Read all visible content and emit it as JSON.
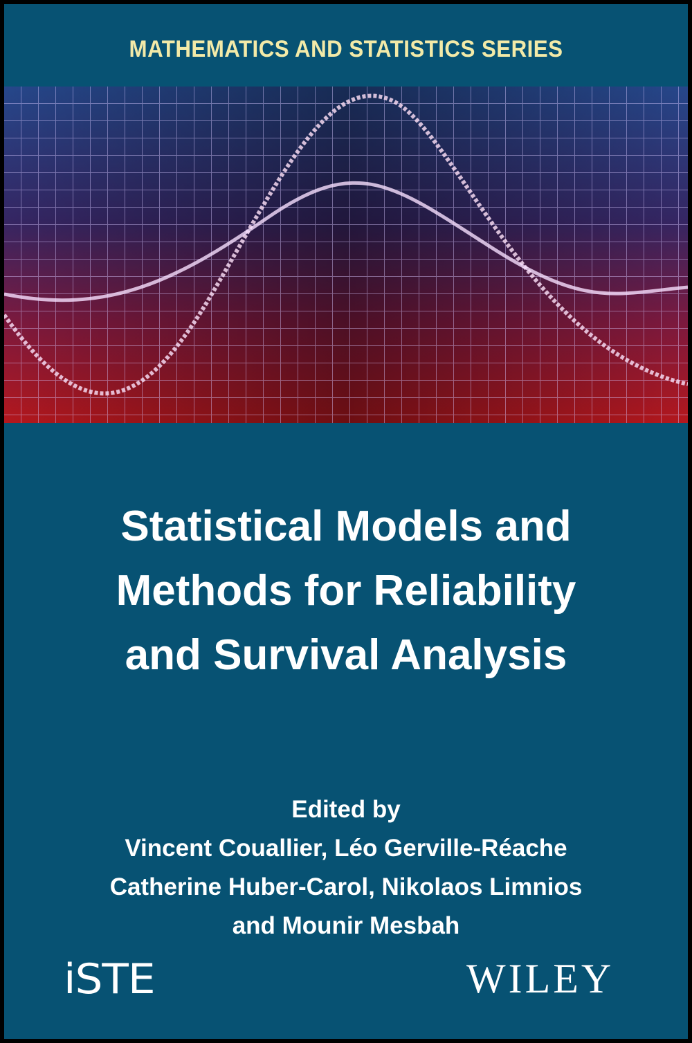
{
  "series": "MATHEMATICS AND STATISTICS SERIES",
  "title_lines": [
    "Statistical Models and",
    "Methods for Reliability",
    "and Survival Analysis"
  ],
  "editors": {
    "label": "Edited by",
    "lines": [
      "Vincent Couallier, Léo Gerville-Réache",
      "Catherine Huber-Carol, Nikolaos Limnios",
      "and Mounir Mesbah"
    ]
  },
  "publishers": {
    "iste": "iSTE",
    "wiley": "WILEY"
  },
  "colors": {
    "background": "#075273",
    "series_text": "#f3eaa8",
    "text": "#ffffff"
  }
}
